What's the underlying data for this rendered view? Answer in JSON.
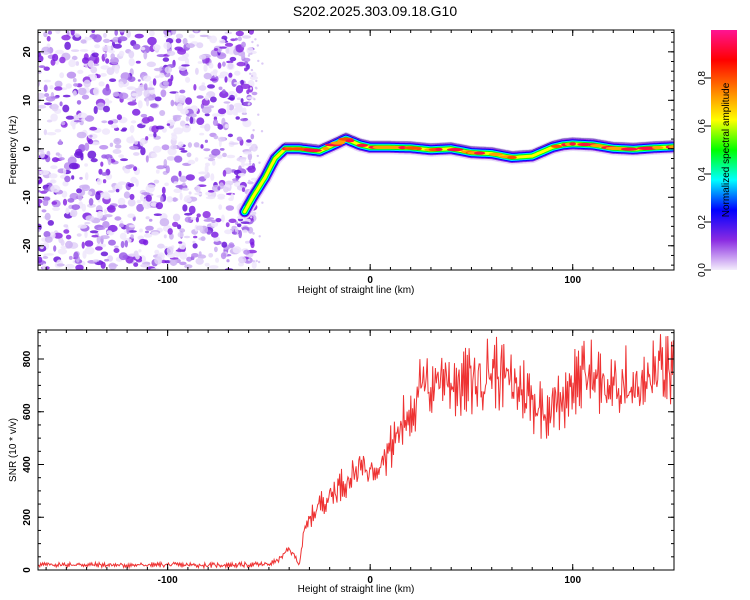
{
  "title": "S202.2025.303.09.18.G10",
  "chart_data": [
    {
      "type": "heatmap",
      "panel": "top",
      "xlabel": "Height of straight line (km)",
      "ylabel": "Frequency (Hz)",
      "xlim": [
        -164,
        150
      ],
      "ylim": [
        -25,
        24.5
      ],
      "xticks": [
        -100,
        0,
        100
      ],
      "yticks": [
        -20,
        -10,
        0,
        10,
        20
      ],
      "noise_region_x": [
        -164,
        -60
      ],
      "trace": {
        "x": [
          -62,
          -58,
          -52,
          -47,
          -42,
          -35,
          -25,
          -17,
          -12,
          -5,
          0,
          10,
          20,
          30,
          40,
          50,
          60,
          70,
          80,
          90,
          95,
          100,
          110,
          120,
          130,
          140,
          150
        ],
        "y": [
          -13,
          -10,
          -6,
          -2,
          0,
          0,
          -0.5,
          1,
          2,
          0.8,
          0.3,
          0.3,
          0.2,
          -0.2,
          0,
          -0.8,
          -1,
          -1.8,
          -1.5,
          0.3,
          0.8,
          1,
          0.8,
          0.1,
          -0.1,
          0.2,
          0.4
        ]
      },
      "colorbar": {
        "label": "Normalized spectral amplitude",
        "ticks": [
          "0.0",
          "0.2",
          "0.4",
          "0.6",
          "0.8"
        ],
        "colors": [
          "#f4eefc",
          "#8a2be2",
          "#0000ff",
          "#00ffff",
          "#00ff00",
          "#ffff00",
          "#ff8000",
          "#ff0000",
          "#ff1493"
        ]
      }
    },
    {
      "type": "line",
      "panel": "bottom",
      "xlabel": "Height of straight line (km)",
      "ylabel": "SNR (10 * v/v)",
      "xlim": [
        -164,
        150
      ],
      "ylim": [
        0,
        910
      ],
      "xticks": [
        -100,
        0,
        100
      ],
      "yticks": [
        0,
        200,
        400,
        600,
        800
      ],
      "series": [
        {
          "name": "SNR",
          "color": "#ee3333",
          "x": [
            -164,
            -140,
            -120,
            -100,
            -80,
            -60,
            -50,
            -45,
            -40,
            -37,
            -35,
            -33,
            -30,
            -25,
            -20,
            -15,
            -10,
            -5,
            0,
            5,
            10,
            15,
            20,
            25,
            30,
            35,
            40,
            45,
            50,
            55,
            60,
            65,
            70,
            75,
            80,
            85,
            90,
            95,
            100,
            105,
            110,
            115,
            120,
            125,
            130,
            135,
            140,
            145,
            150
          ],
          "values": [
            20,
            20,
            18,
            20,
            18,
            20,
            22,
            40,
            80,
            50,
            20,
            130,
            190,
            250,
            280,
            320,
            350,
            390,
            380,
            420,
            460,
            540,
            610,
            680,
            700,
            740,
            720,
            700,
            720,
            730,
            760,
            740,
            700,
            690,
            640,
            610,
            620,
            650,
            720,
            730,
            740,
            700,
            680,
            720,
            700,
            690,
            740,
            760,
            730
          ]
        }
      ]
    }
  ]
}
